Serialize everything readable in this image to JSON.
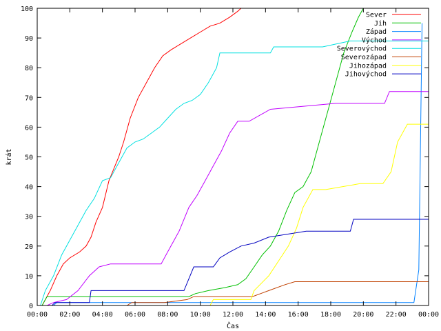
{
  "chart_data": {
    "type": "line",
    "xlabel": "Čas",
    "ylabel": "krát",
    "xlim": [
      0,
      24
    ],
    "ylim": [
      0,
      100
    ],
    "grid": false,
    "legend_position": "top-right",
    "x_ticks": [
      0,
      2,
      4,
      6,
      8,
      10,
      12,
      14,
      16,
      18,
      20,
      22,
      24
    ],
    "x_tick_labels": [
      "00:00",
      "02:00",
      "04:00",
      "06:00",
      "08:00",
      "10:00",
      "12:00",
      "14:00",
      "16:00",
      "18:00",
      "20:00",
      "22:00",
      "00:00"
    ],
    "y_ticks": [
      0,
      10,
      20,
      30,
      40,
      50,
      60,
      70,
      80,
      90,
      100
    ],
    "y_tick_labels": [
      "0",
      "10",
      "20",
      "30",
      "40",
      "50",
      "60",
      "70",
      "80",
      "90",
      "100"
    ],
    "series": [
      {
        "name": "Sever",
        "color": "#ff0000",
        "x": [
          0.3,
          0.8,
          1.2,
          1.6,
          2.0,
          2.6,
          3.0,
          3.3,
          3.6,
          4.0,
          4.4,
          4.7,
          5.0,
          5.3,
          5.7,
          6.2,
          6.7,
          7.2,
          7.7,
          8.2,
          8.8,
          9.4,
          10.0,
          10.6,
          11.2,
          11.8,
          12.3,
          12.5
        ],
        "y": [
          0,
          5,
          10,
          14,
          16,
          18,
          20,
          23,
          28,
          33,
          42,
          46,
          50,
          55,
          63,
          70,
          75,
          80,
          84,
          86,
          88,
          90,
          92,
          94,
          95,
          97,
          99,
          100
        ]
      },
      {
        "name": "Jih",
        "color": "#00c000",
        "x": [
          0.3,
          0.6,
          9.3,
          9.7,
          10.5,
          11.5,
          12.3,
          12.8,
          13.3,
          13.8,
          14.3,
          14.8,
          15.3,
          15.8,
          16.3,
          16.8,
          17.3,
          17.8,
          18.3,
          18.8,
          19.3,
          19.7,
          20.0
        ],
        "y": [
          0,
          3,
          3,
          4,
          5,
          6,
          7,
          9,
          13,
          17,
          20,
          25,
          32,
          38,
          40,
          45,
          55,
          65,
          75,
          85,
          92,
          97,
          100
        ]
      },
      {
        "name": "Západ",
        "color": "#0080ff",
        "x": [
          1.0,
          1.2,
          23.1,
          23.4,
          23.6
        ],
        "y": [
          0,
          1,
          1,
          12,
          95
        ]
      },
      {
        "name": "Východ",
        "color": "#c000ff",
        "x": [
          0.6,
          1.0,
          1.8,
          2.5,
          3.2,
          3.8,
          4.5,
          7.6,
          8.0,
          8.7,
          9.3,
          9.8,
          10.3,
          10.8,
          11.3,
          11.8,
          12.3,
          13.0,
          14.3,
          18.3,
          21.3,
          21.6,
          24.0
        ],
        "y": [
          0,
          1,
          2,
          5,
          10,
          13,
          14,
          14,
          18,
          25,
          33,
          37,
          42,
          47,
          52,
          58,
          62,
          62,
          66,
          68,
          68,
          72,
          72
        ]
      },
      {
        "name": "Severovýchod",
        "color": "#00e0e0",
        "x": [
          0.2,
          0.5,
          1.0,
          1.5,
          2.0,
          2.5,
          3.0,
          3.5,
          4.0,
          4.5,
          5.0,
          5.5,
          6.0,
          6.5,
          7.0,
          7.5,
          8.0,
          8.5,
          9.0,
          9.5,
          10.0,
          10.5,
          11.0,
          11.2,
          12.0,
          12.5,
          14.3,
          14.5,
          17.5,
          19.2,
          19.5,
          24.0
        ],
        "y": [
          0,
          5,
          10,
          17,
          22,
          27,
          32,
          36,
          42,
          43,
          48,
          53,
          55,
          56,
          58,
          60,
          63,
          66,
          68,
          69,
          71,
          75,
          80,
          85,
          85,
          85,
          85,
          87,
          87,
          89,
          89,
          89
        ]
      },
      {
        "name": "Severozápad",
        "color": "#c04000",
        "x": [
          5.5,
          5.8,
          7.8,
          9.2,
          9.6,
          13.2,
          14.2,
          15.2,
          15.8,
          24.0
        ],
        "y": [
          0,
          1,
          1,
          2,
          3,
          3,
          5,
          7,
          8,
          8
        ]
      },
      {
        "name": "Jihozápad",
        "color": "#ffff00",
        "x": [
          10.6,
          10.8,
          13.1,
          13.3,
          14.2,
          14.8,
          15.4,
          15.9,
          16.3,
          16.9,
          17.7,
          19.8,
          21.2,
          21.7,
          22.1,
          22.7,
          23.6,
          24.0
        ],
        "y": [
          0,
          2,
          2,
          5,
          10,
          15,
          20,
          26,
          33,
          39,
          39,
          41,
          41,
          45,
          55,
          61,
          61,
          61
        ]
      },
      {
        "name": "Jihovýchod",
        "color": "#0000c0",
        "x": [
          0.9,
          1.1,
          3.2,
          3.3,
          9.0,
          9.6,
          10.8,
          11.2,
          11.8,
          12.5,
          13.3,
          14.2,
          16.5,
          19.2,
          19.4,
          24.0
        ],
        "y": [
          0,
          1,
          1,
          5,
          5,
          13,
          13,
          16,
          18,
          20,
          21,
          23,
          25,
          25,
          29,
          29
        ]
      }
    ]
  }
}
